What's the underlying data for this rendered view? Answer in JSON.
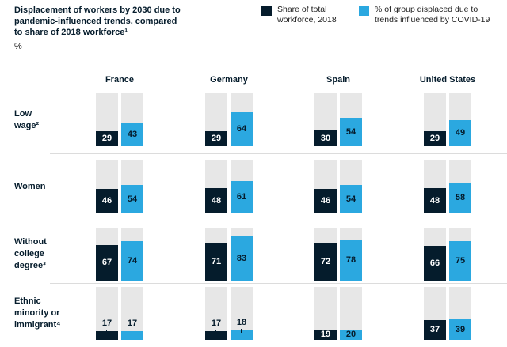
{
  "header": {
    "title": "Displacement of workers by 2030 due to\npandemic-influenced trends, compared\nto share of 2018 workforce¹",
    "unit": "%"
  },
  "legend": {
    "items": [
      {
        "name": "workforce-share",
        "label": "Share of total\nworkforce, 2018",
        "color": "#051c2c"
      },
      {
        "name": "displaced-share",
        "label": "% of group displaced due to\ntrends influenced by COVID-19",
        "color": "#2ba8e0"
      }
    ]
  },
  "colors": {
    "dark_navy": "#051c2c",
    "light_blue": "#2ba8e0",
    "backdrop_gray": "#e7e7e7",
    "separator": "#dcdcdc",
    "value_on_dark": "#ffffff",
    "value_on_blue": "#051c2c"
  },
  "chart_data": {
    "type": "bar",
    "title": "Displacement of workers by 2030 due to pandemic-influenced trends, compared to share of 2018 workforce",
    "unit": "%",
    "ylim": [
      0,
      100
    ],
    "series_names": [
      "Share of total workforce, 2018",
      "% of group displaced due to trends influenced by COVID-19"
    ],
    "columns": [
      "France",
      "Germany",
      "Spain",
      "United States"
    ],
    "rows": [
      {
        "label": "Low\nwage²",
        "cells": [
          {
            "workforce": 29,
            "displaced": 43,
            "label_pos": "inside"
          },
          {
            "workforce": 29,
            "displaced": 64,
            "label_pos": "inside"
          },
          {
            "workforce": 30,
            "displaced": 54,
            "label_pos": "inside"
          },
          {
            "workforce": 29,
            "displaced": 49,
            "label_pos": "inside"
          }
        ]
      },
      {
        "label": "Women",
        "cells": [
          {
            "workforce": 46,
            "displaced": 54,
            "label_pos": "inside"
          },
          {
            "workforce": 48,
            "displaced": 61,
            "label_pos": "inside"
          },
          {
            "workforce": 46,
            "displaced": 54,
            "label_pos": "inside"
          },
          {
            "workforce": 48,
            "displaced": 58,
            "label_pos": "inside"
          }
        ]
      },
      {
        "label": "Without\ncollege\ndegree³",
        "cells": [
          {
            "workforce": 67,
            "displaced": 74,
            "label_pos": "inside"
          },
          {
            "workforce": 71,
            "displaced": 83,
            "label_pos": "inside"
          },
          {
            "workforce": 72,
            "displaced": 78,
            "label_pos": "inside"
          },
          {
            "workforce": 66,
            "displaced": 75,
            "label_pos": "inside"
          }
        ]
      },
      {
        "label": "Ethnic\nminority or\nimmigrant⁴",
        "cells": [
          {
            "workforce": 17,
            "displaced": 17,
            "label_pos": "above"
          },
          {
            "workforce": 17,
            "displaced": 18,
            "label_pos": "above"
          },
          {
            "workforce": 19,
            "displaced": 20,
            "label_pos": "inside"
          },
          {
            "workforce": 37,
            "displaced": 39,
            "label_pos": "inside"
          }
        ]
      }
    ]
  }
}
